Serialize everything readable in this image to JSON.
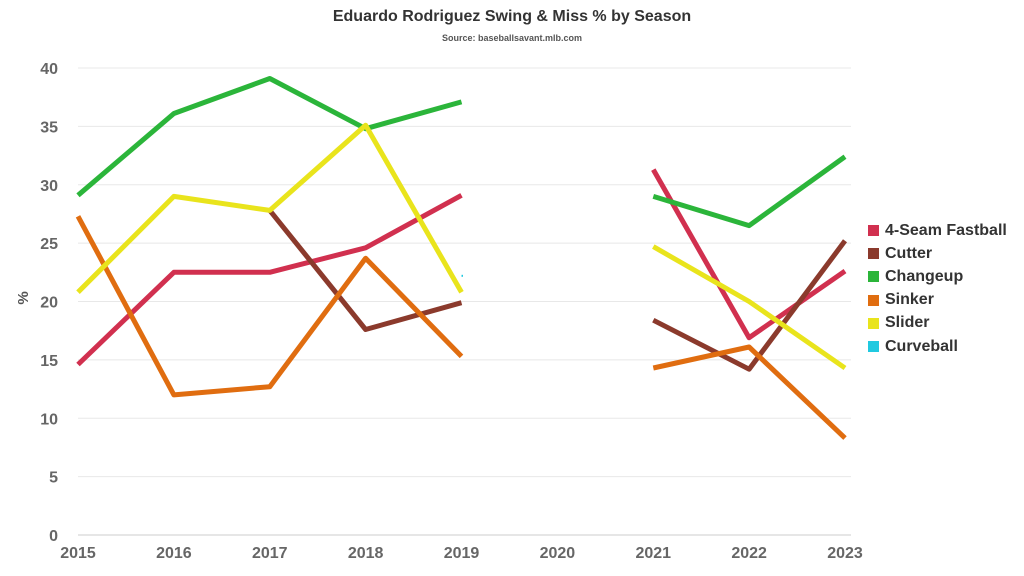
{
  "title": "Eduardo Rodriguez Swing & Miss % by Season",
  "subtitle": "Source: baseballsavant.mlb.com",
  "chart_data": {
    "type": "line",
    "title": "Eduardo Rodriguez Swing & Miss % by Season",
    "subtitle": "Source: baseballsavant.mlb.com",
    "xlabel": "",
    "ylabel": "%",
    "x": [
      "2015",
      "2016",
      "2017",
      "2018",
      "2019",
      "2020",
      "2021",
      "2022",
      "2023"
    ],
    "yticks": [
      "0",
      "5",
      "10",
      "15",
      "20",
      "25",
      "30",
      "35",
      "40"
    ],
    "ylim": [
      0,
      40
    ],
    "grid": true,
    "legend_position": "right",
    "series": [
      {
        "name": "4-Seam Fastball",
        "color": "#d1304f",
        "values": [
          14.6,
          22.5,
          22.5,
          24.6,
          29.1,
          null,
          31.3,
          16.9,
          22.6
        ]
      },
      {
        "name": "Cutter",
        "color": "#8b3a2c",
        "values": [
          null,
          null,
          27.8,
          17.6,
          19.9,
          null,
          18.4,
          14.2,
          25.2
        ]
      },
      {
        "name": "Changeup",
        "color": "#2bb53a",
        "values": [
          29.1,
          36.1,
          39.1,
          34.8,
          37.1,
          null,
          29.0,
          26.5,
          32.4
        ]
      },
      {
        "name": "Sinker",
        "color": "#e06d10",
        "values": [
          27.3,
          12.0,
          12.7,
          23.7,
          15.3,
          null,
          14.3,
          16.1,
          8.3
        ]
      },
      {
        "name": "Slider",
        "color": "#e9e41c",
        "values": [
          20.8,
          29.0,
          27.8,
          35.1,
          20.8,
          null,
          24.7,
          20.0,
          14.3
        ]
      },
      {
        "name": "Curveball",
        "color": "#20c9e0",
        "values": [
          null,
          null,
          null,
          null,
          22.2,
          null,
          null,
          null,
          null
        ]
      }
    ]
  }
}
